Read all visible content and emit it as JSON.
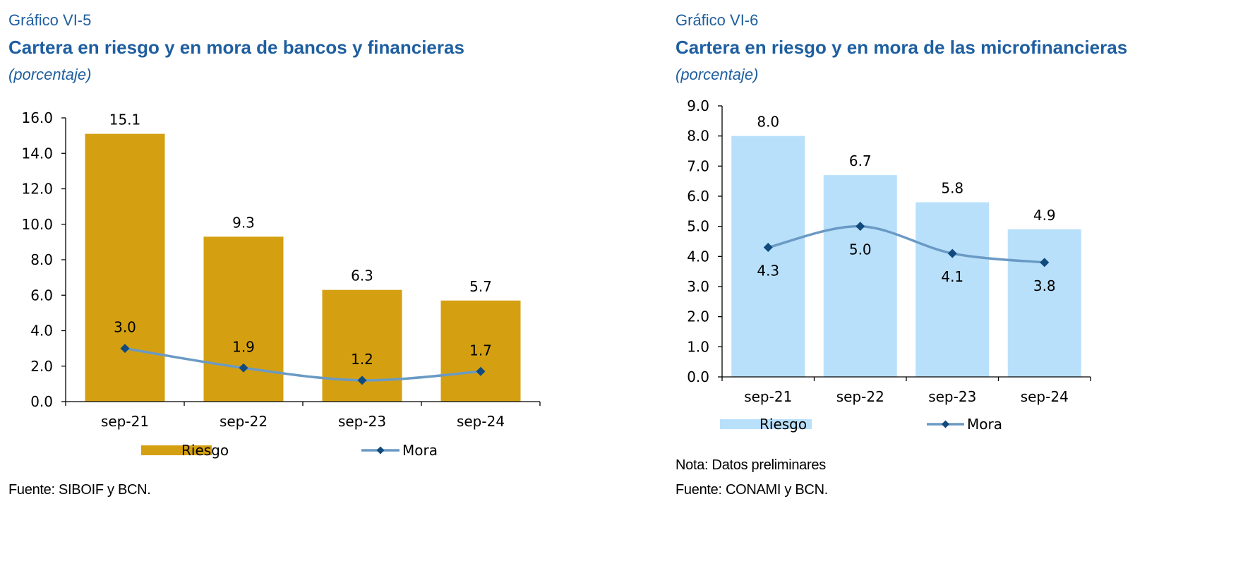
{
  "panels": [
    {
      "label": "Gráfico VI-5",
      "title": "Cartera en riesgo y en mora de bancos y financieras",
      "subtitle": "(porcentaje)",
      "notes": [],
      "source": "Fuente: SIBOIF y BCN."
    },
    {
      "label": "Gráfico VI-6",
      "title": "Cartera en riesgo y en mora de las microfinancieras",
      "subtitle": "(porcentaje)",
      "notes": [
        "Nota: Datos preliminares"
      ],
      "source": "Fuente: CONAMI y BCN."
    }
  ],
  "chart_data": [
    {
      "type": "bar",
      "categories": [
        "sep-21",
        "sep-22",
        "sep-23",
        "sep-24"
      ],
      "series": [
        {
          "name": "Riesgo",
          "type": "bar",
          "color": "#d4a012",
          "values": [
            15.1,
            9.3,
            6.3,
            5.7
          ]
        },
        {
          "name": "Mora",
          "type": "line",
          "color": "#6a9ac4",
          "marker_color": "#114a7c",
          "values": [
            3.0,
            1.9,
            1.2,
            1.7
          ]
        }
      ],
      "ylim": [
        0,
        16
      ],
      "yticks": [
        "0.0",
        "2.0",
        "4.0",
        "6.0",
        "8.0",
        "10.0",
        "12.0",
        "14.0",
        "16.0"
      ],
      "line_labels_position": "above",
      "grid": false,
      "legend": "bottom"
    },
    {
      "type": "bar",
      "categories": [
        "sep-21",
        "sep-22",
        "sep-23",
        "sep-24"
      ],
      "series": [
        {
          "name": "Riesgo",
          "type": "bar",
          "color": "#b8e0fb",
          "values": [
            8.0,
            6.7,
            5.8,
            4.9
          ]
        },
        {
          "name": "Mora",
          "type": "line",
          "color": "#6a9ac4",
          "marker_color": "#114a7c",
          "values": [
            4.3,
            5.0,
            4.1,
            3.8
          ]
        }
      ],
      "ylim": [
        0,
        9
      ],
      "yticks": [
        "0.0",
        "1.0",
        "2.0",
        "3.0",
        "4.0",
        "5.0",
        "6.0",
        "7.0",
        "8.0",
        "9.0"
      ],
      "line_labels_position": "below",
      "grid": false,
      "legend": "bottom"
    }
  ]
}
